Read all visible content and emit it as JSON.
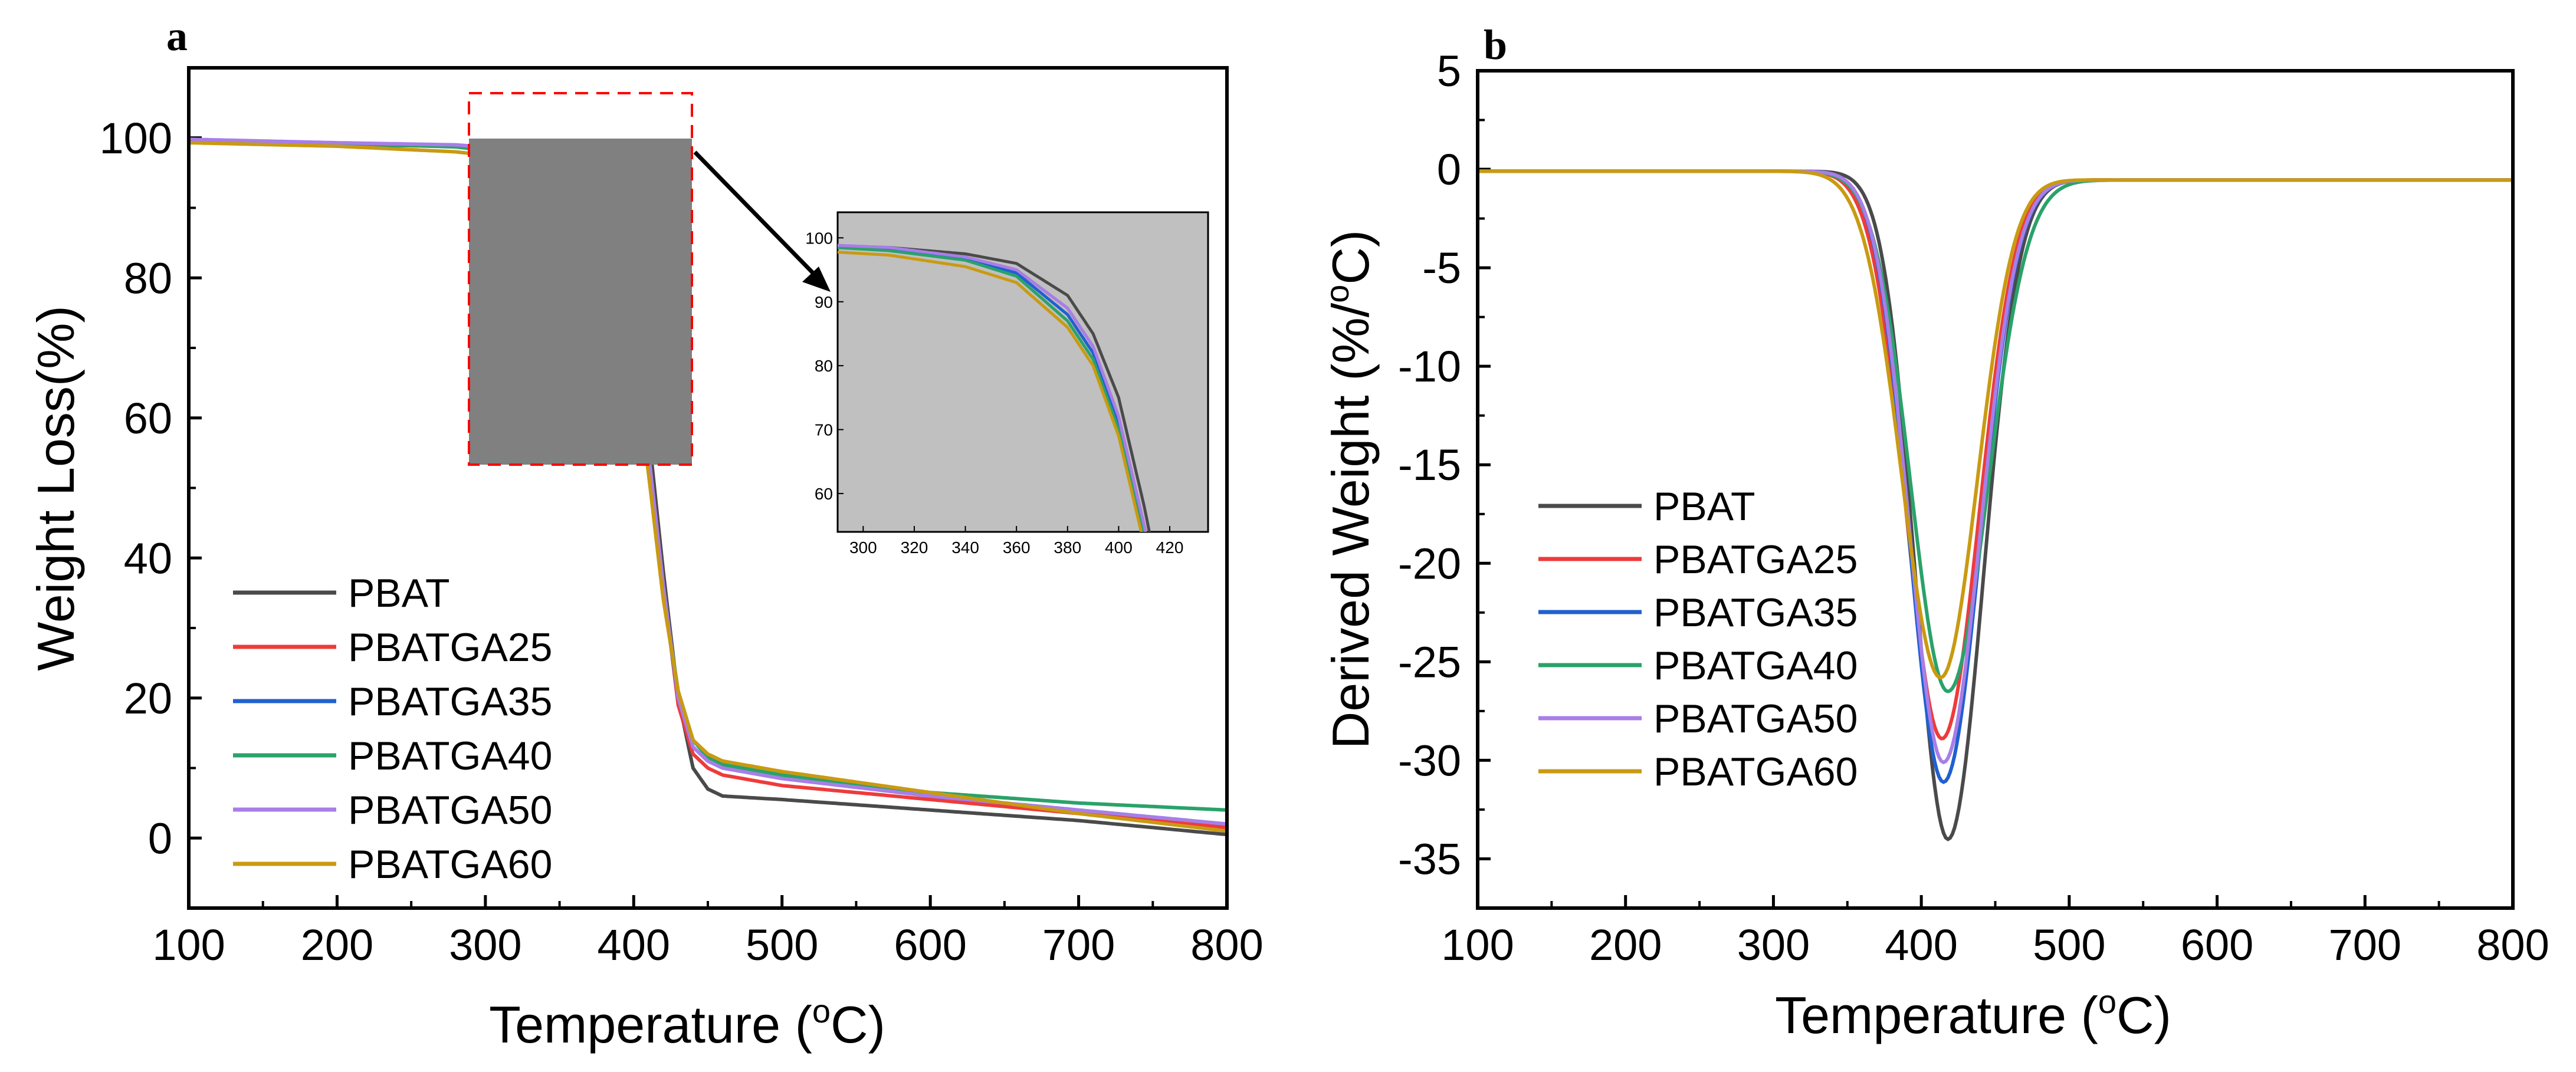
{
  "figure": {
    "panel_a_label": "a",
    "panel_b_label": "b"
  },
  "colors": {
    "PBAT": "#4a4a4a",
    "PBATGA25": "#ee3b3b",
    "PBATGA35": "#2060d0",
    "PBATGA40": "#2aa26a",
    "PBATGA50": "#a87ee8",
    "PBATGA60": "#c99a12",
    "inset_bg": "#c0c0c0",
    "zoom_box": "#808080",
    "zoom_outline": "#ff0000"
  },
  "chart_data": [
    {
      "id": "a",
      "type": "line",
      "panel_label": "a",
      "title": "",
      "xlabel": "Temperature (",
      "xlabel_sup": "o",
      "xlabel_unit": "C)",
      "ylabel": "Weight Loss(%)",
      "xlim": [
        100,
        800
      ],
      "ylim": [
        -10,
        110
      ],
      "xticks": [
        100,
        200,
        300,
        400,
        500,
        600,
        700,
        800
      ],
      "yticks": [
        0,
        20,
        40,
        60,
        80,
        100
      ],
      "legend": "bottom-left",
      "series": [
        {
          "name": "PBAT",
          "x": [
            100,
            200,
            280,
            310,
            340,
            360,
            380,
            390,
            400,
            410,
            420,
            430,
            440,
            450,
            460,
            500,
            600,
            700,
            800
          ],
          "y": [
            99.5,
            99.0,
            98.8,
            98.5,
            97.5,
            96,
            91,
            85,
            75,
            58,
            38,
            20,
            10,
            7,
            6,
            5.5,
            4,
            2.5,
            0.5
          ]
        },
        {
          "name": "PBATGA25",
          "x": [
            100,
            200,
            280,
            310,
            340,
            360,
            380,
            390,
            400,
            410,
            420,
            430,
            440,
            450,
            460,
            500,
            600,
            700,
            800
          ],
          "y": [
            99.5,
            99.2,
            98.8,
            98.3,
            97,
            95,
            89,
            83,
            72,
            55,
            36,
            19,
            12,
            10,
            9,
            7.5,
            5.5,
            3.5,
            1.5
          ]
        },
        {
          "name": "PBATGA35",
          "x": [
            100,
            200,
            280,
            310,
            340,
            360,
            380,
            390,
            400,
            410,
            420,
            430,
            440,
            450,
            460,
            500,
            600,
            700,
            800
          ],
          "y": [
            99.5,
            99.2,
            98.8,
            98.2,
            96.8,
            94.5,
            88,
            82,
            71,
            54,
            35,
            20,
            13,
            11,
            10,
            8.5,
            6,
            4,
            2
          ]
        },
        {
          "name": "PBATGA40",
          "x": [
            100,
            200,
            280,
            310,
            340,
            360,
            380,
            390,
            400,
            410,
            420,
            430,
            440,
            450,
            460,
            500,
            600,
            700,
            800
          ],
          "y": [
            99.5,
            99.2,
            98.7,
            98,
            96.5,
            94,
            87,
            81,
            70,
            53,
            35,
            21,
            14,
            11.5,
            10.5,
            9,
            6.5,
            5,
            4
          ]
        },
        {
          "name": "PBATGA50",
          "x": [
            100,
            200,
            280,
            310,
            340,
            360,
            380,
            390,
            400,
            410,
            420,
            430,
            440,
            450,
            460,
            500,
            600,
            700,
            800
          ],
          "y": [
            99.8,
            99.3,
            99,
            98.5,
            97,
            95,
            89,
            83,
            72,
            55,
            36,
            20,
            13,
            11,
            10,
            8.5,
            6,
            4,
            2
          ]
        },
        {
          "name": "PBATGA60",
          "x": [
            100,
            200,
            280,
            310,
            340,
            360,
            380,
            390,
            400,
            410,
            420,
            430,
            440,
            450,
            460,
            500,
            600,
            700,
            800
          ],
          "y": [
            99.3,
            98.8,
            98,
            97.3,
            95.5,
            93,
            86,
            80,
            69,
            52,
            34,
            21,
            14,
            12,
            11,
            9.5,
            6.5,
            3.5,
            1
          ]
        }
      ],
      "inset": {
        "xlim": [
          290,
          435
        ],
        "ylim": [
          54,
          104
        ],
        "xticks": [
          300,
          320,
          340,
          360,
          380,
          400,
          420
        ],
        "yticks": [
          60,
          70,
          80,
          90,
          100
        ],
        "zoom_region": {
          "x": [
            290,
            440
          ],
          "y": [
            53.5,
            100
          ]
        }
      }
    },
    {
      "id": "b",
      "type": "line",
      "panel_label": "b",
      "title": "",
      "xlabel": "Temperature (",
      "xlabel_sup": "o",
      "xlabel_unit": "C)",
      "ylabel": "Derived Weight (%/",
      "ylabel_sup": "o",
      "ylabel_unit": "C)",
      "xlim": [
        100,
        800
      ],
      "ylim": [
        -37.5,
        5
      ],
      "xticks": [
        100,
        200,
        300,
        400,
        500,
        600,
        700,
        800
      ],
      "yticks": [
        5,
        0,
        -5,
        -10,
        -15,
        -20,
        -25,
        -30,
        -35
      ],
      "legend": "center-left",
      "series": [
        {
          "name": "PBAT",
          "min": -33.9,
          "center": 418,
          "width_left": 22,
          "width_right": 24
        },
        {
          "name": "PBATGA25",
          "min": -28.8,
          "center": 414,
          "width_left": 24,
          "width_right": 25
        },
        {
          "name": "PBATGA35",
          "min": -31.0,
          "center": 415,
          "width_left": 23,
          "width_right": 25
        },
        {
          "name": "PBATGA40",
          "min": -26.4,
          "center": 418,
          "width_left": 25,
          "width_right": 27
        },
        {
          "name": "PBATGA50",
          "min": -30.0,
          "center": 415,
          "width_left": 23,
          "width_right": 25
        },
        {
          "name": "PBATGA60",
          "min": -25.7,
          "center": 413,
          "width_left": 26,
          "width_right": 25
        }
      ]
    }
  ]
}
